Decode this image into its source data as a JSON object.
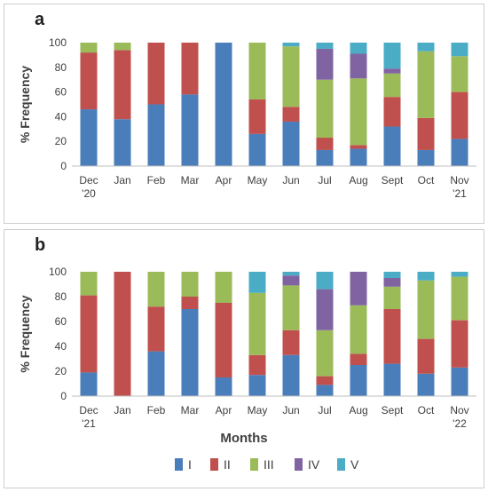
{
  "panels": [
    {
      "letter": "a"
    },
    {
      "letter": "b"
    }
  ],
  "xtitle": "Months",
  "legend": [
    "I",
    "II",
    "III",
    "IV",
    "V"
  ],
  "colors": [
    "#4a7ebb",
    "#c0504d",
    "#9bbb59",
    "#8064a2",
    "#4bacc6"
  ],
  "chart_data": [
    {
      "type": "bar",
      "stacked": true,
      "ylabel": "% Frequency",
      "ylim": [
        0,
        100
      ],
      "yticks": [
        0,
        20,
        40,
        60,
        80,
        100
      ],
      "categories": [
        [
          "Dec",
          "'20"
        ],
        [
          "Jan"
        ],
        [
          "Feb"
        ],
        [
          "Mar"
        ],
        [
          "Apr"
        ],
        [
          "May"
        ],
        [
          "Jun"
        ],
        [
          "Jul"
        ],
        [
          "Aug"
        ],
        [
          "Sept"
        ],
        [
          "Oct"
        ],
        [
          "Nov",
          "'21"
        ]
      ],
      "series": [
        {
          "name": "I",
          "values": [
            46,
            38,
            50,
            58,
            100,
            26,
            36,
            13,
            14,
            32,
            13,
            22
          ]
        },
        {
          "name": "II",
          "values": [
            46,
            56,
            50,
            42,
            0,
            28,
            12,
            10,
            3,
            24,
            26,
            38
          ]
        },
        {
          "name": "III",
          "values": [
            8,
            6,
            0,
            0,
            0,
            46,
            49,
            47,
            54,
            19,
            54,
            29
          ]
        },
        {
          "name": "IV",
          "values": [
            0,
            0,
            0,
            0,
            0,
            0,
            0,
            25,
            20,
            4,
            0,
            0
          ]
        },
        {
          "name": "V",
          "values": [
            0,
            0,
            0,
            0,
            0,
            0,
            3,
            5,
            9,
            21,
            7,
            11
          ]
        }
      ]
    },
    {
      "type": "bar",
      "stacked": true,
      "ylabel": "% Frequency",
      "xlabel": "Months",
      "ylim": [
        0,
        100
      ],
      "yticks": [
        0,
        20,
        40,
        60,
        80,
        100
      ],
      "categories": [
        [
          "Dec",
          "'21"
        ],
        [
          "Jan"
        ],
        [
          "Feb"
        ],
        [
          "Mar"
        ],
        [
          "Apr"
        ],
        [
          "May"
        ],
        [
          "Jun"
        ],
        [
          "Jul"
        ],
        [
          "Aug"
        ],
        [
          "Sept"
        ],
        [
          "Oct"
        ],
        [
          "Nov",
          "'22"
        ]
      ],
      "series": [
        {
          "name": "I",
          "values": [
            19,
            0,
            36,
            70,
            15,
            17,
            33,
            9,
            25,
            26,
            18,
            23
          ]
        },
        {
          "name": "II",
          "values": [
            62,
            100,
            36,
            10,
            60,
            16,
            20,
            7,
            9,
            44,
            28,
            38
          ]
        },
        {
          "name": "III",
          "values": [
            19,
            0,
            28,
            20,
            25,
            50,
            36,
            37,
            39,
            18,
            47,
            35
          ]
        },
        {
          "name": "IV",
          "values": [
            0,
            0,
            0,
            0,
            0,
            0,
            8,
            33,
            27,
            7,
            0,
            0
          ]
        },
        {
          "name": "V",
          "values": [
            0,
            0,
            0,
            0,
            0,
            17,
            3,
            14,
            0,
            5,
            7,
            4
          ]
        }
      ]
    }
  ]
}
